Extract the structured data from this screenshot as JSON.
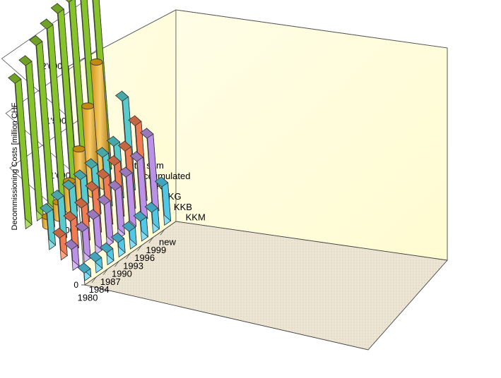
{
  "chart_data": {
    "type": "bar",
    "subtype": "3d-column",
    "ylabel": "Decommissioning Costs [million CHF",
    "ylim": [
      0,
      2000
    ],
    "yticks": [
      "0",
      "500",
      "1'000",
      "1'500",
      "2'000"
    ],
    "categories": [
      "1980",
      "1984",
      "1987",
      "1990",
      "1993",
      "1996",
      "1999",
      "new"
    ],
    "series_labels": [
      "KKM",
      "KKB",
      "KKG",
      "KKL",
      "accumulated",
      "total sum"
    ],
    "grid": true,
    "series": [
      {
        "name": "KKM",
        "color": "#55d3f2",
        "values": [
          70,
          100,
          110,
          130,
          160,
          180,
          190,
          350
        ]
      },
      {
        "name": "KKB",
        "color": "#c59af4",
        "values": [
          190,
          280,
          320,
          380,
          440,
          490,
          560,
          700
        ]
      },
      {
        "name": "KKG",
        "color": "#ff8355",
        "values": [
          200,
          280,
          330,
          410,
          450,
          500,
          560,
          720
        ]
      },
      {
        "name": "KKL",
        "color": "#5fd6d8",
        "values": [
          330,
          380,
          400,
          420,
          450,
          480,
          510,
          850
        ]
      },
      {
        "name": "accumulated",
        "color": "#f2ad14",
        "values": [
          0,
          90,
          150,
          270,
          490,
          810,
          1140,
          0
        ]
      },
      {
        "name": "total sum",
        "color": "#8ece2e",
        "values": [
          1330,
          1420,
          1530,
          1610,
          1680,
          1710,
          1770,
          2080
        ]
      }
    ]
  }
}
